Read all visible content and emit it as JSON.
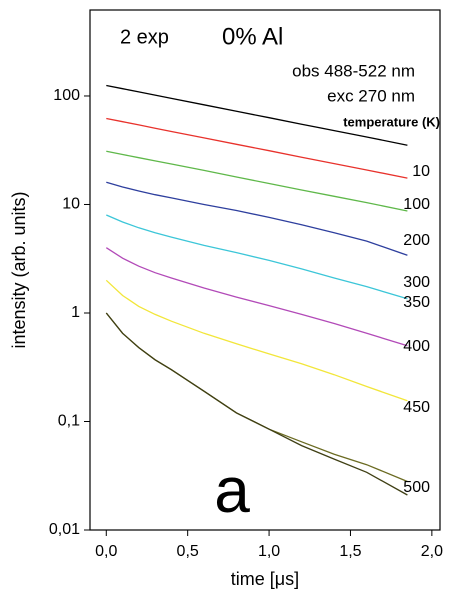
{
  "chart_data": {
    "type": "line",
    "log_y": true,
    "x_label": "time  [μs]",
    "y_label": "intensity (arb. units)",
    "annotations": [
      "2 exp",
      "0% Al",
      "obs 488-522 nm",
      "exc 270 nm",
      "a"
    ],
    "legend_title": "temperature (K)",
    "xlim": [
      -0.1,
      2.05
    ],
    "ylim": [
      0.01,
      620
    ],
    "xticks": [
      {
        "value": 0,
        "label": "0,0"
      },
      {
        "value": 0.5,
        "label": "0,5"
      },
      {
        "value": 1,
        "label": "1,0"
      },
      {
        "value": 1.5,
        "label": "1,5"
      },
      {
        "value": 2,
        "label": "2,0"
      }
    ],
    "yticks": [
      {
        "value": 0.01,
        "label": "0,01"
      },
      {
        "value": 0.1,
        "label": "0,1"
      },
      1,
      10,
      100
    ],
    "x": [
      0,
      0.1,
      0.2,
      0.3,
      0.4,
      0.6,
      0.8,
      1.0,
      1.2,
      1.4,
      1.6,
      1.85
    ],
    "series": [
      {
        "name": "10",
        "color": "#000000",
        "values": [
          125,
          116.7,
          109,
          101.8,
          95,
          82.9,
          72.3,
          63.1,
          55,
          48,
          41.9,
          35.2
        ]
      },
      {
        "name": "100",
        "color": "#e8322c",
        "values": [
          62,
          57.9,
          54.1,
          50.5,
          47.1,
          41.1,
          35.9,
          31.3,
          27.3,
          23.8,
          20.8,
          17.5
        ]
      },
      {
        "name": "200",
        "color": "#5fb84a",
        "values": [
          31,
          28.9,
          27,
          25.2,
          23.6,
          20.6,
          17.9,
          15.6,
          13.6,
          11.9,
          10.4,
          8.7
        ]
      },
      {
        "name": "300",
        "color": "#2e3f9e",
        "values": [
          16,
          14.5,
          13.3,
          12.3,
          11.5,
          10,
          8.8,
          7.6,
          6.5,
          5.5,
          4.6,
          3.4
        ]
      },
      {
        "name": "350",
        "color": "#3cc6d8",
        "values": [
          8,
          6.9,
          6.1,
          5.5,
          5,
          4.2,
          3.6,
          3.05,
          2.55,
          2.1,
          1.75,
          1.35
        ]
      },
      {
        "name": "400",
        "color": "#b24ab8",
        "values": [
          4,
          3.2,
          2.7,
          2.35,
          2.1,
          1.7,
          1.4,
          1.17,
          0.97,
          0.8,
          0.65,
          0.5
        ]
      },
      {
        "name": "450",
        "color": "#f2e63a",
        "values": [
          2,
          1.45,
          1.15,
          0.97,
          0.84,
          0.65,
          0.52,
          0.42,
          0.34,
          0.27,
          0.21,
          0.155
        ]
      },
      {
        "name": "500",
        "color": "#6b6b22",
        "values": [
          1,
          0.65,
          0.48,
          0.37,
          0.3,
          0.19,
          0.12,
          0.085,
          0.065,
          0.05,
          0.04,
          0.028
        ]
      },
      {
        "color": "#3f3f14",
        "values": [
          1,
          0.65,
          0.48,
          0.37,
          0.3,
          0.19,
          0.12,
          0.085,
          0.06,
          0.045,
          0.034,
          0.021
        ]
      }
    ]
  }
}
